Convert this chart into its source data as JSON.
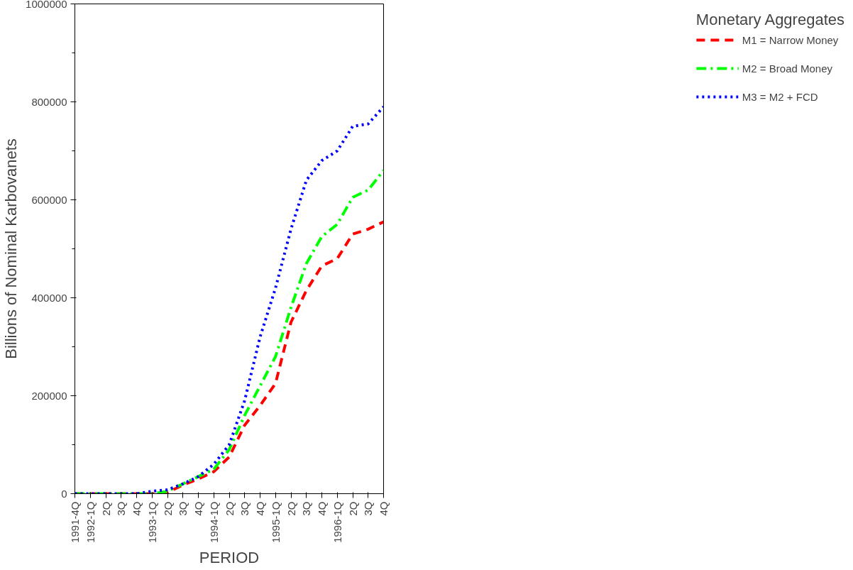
{
  "chart_data": {
    "type": "line",
    "xlabel": "PERIOD",
    "ylabel": "Billions of Nominal Karbovanets",
    "legend_title": "Monetary Aggregates",
    "legend": "right",
    "grid": false,
    "categories": [
      "1991-4Q",
      "1992-1Q",
      "2Q",
      "3Q",
      "4Q",
      "1993-1Q",
      "2Q",
      "3Q",
      "4Q",
      "1994-1Q",
      "2Q",
      "3Q",
      "4Q",
      "1995-1Q",
      "2Q",
      "3Q",
      "4Q",
      "1996-1Q",
      "2Q",
      "3Q",
      "4Q"
    ],
    "ylim": [
      0,
      1000000
    ],
    "yticks": [
      0,
      {
        "value": 100000,
        "label": null
      },
      200000,
      {
        "value": 300000,
        "label": null
      },
      400000,
      {
        "value": 500000,
        "label": null
      },
      600000,
      {
        "value": 700000,
        "label": null
      },
      800000,
      {
        "value": 900000,
        "label": null
      },
      1000000
    ],
    "series": [
      {
        "name": "M1 = Narrow Money",
        "color": "#ff0000",
        "line_style": "dashed",
        "values": [
          0,
          0,
          0,
          0,
          0,
          0,
          2000,
          18000,
          30000,
          45000,
          75000,
          140000,
          180000,
          225000,
          350000,
          415000,
          465000,
          480000,
          530000,
          540000,
          555000
        ]
      },
      {
        "name": "M2 = Broad Money",
        "color": "#00ff00",
        "line_style": "dashdot",
        "values": [
          0,
          0,
          0,
          0,
          0,
          0,
          5000,
          20000,
          35000,
          50000,
          90000,
          160000,
          220000,
          280000,
          380000,
          470000,
          525000,
          550000,
          605000,
          620000,
          660000
        ]
      },
      {
        "name": "M3 = M2 + FCD",
        "color": "#0000ff",
        "line_style": "dotted",
        "values": [
          0,
          0,
          0,
          0,
          0,
          5000,
          8000,
          20000,
          35000,
          60000,
          100000,
          190000,
          320000,
          420000,
          540000,
          640000,
          680000,
          700000,
          750000,
          755000,
          790000
        ]
      }
    ]
  }
}
